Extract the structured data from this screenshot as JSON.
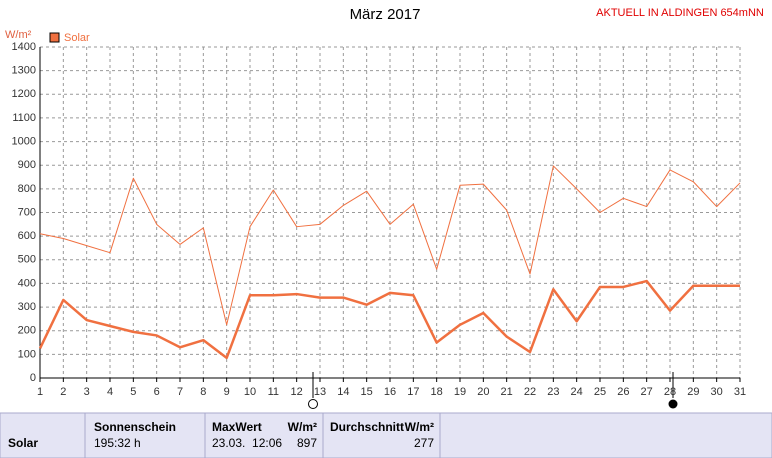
{
  "chart_data": {
    "type": "line",
    "title": "März 2017",
    "subtitle": "AKTUELL IN ALDINGEN 654mNN",
    "y_label": "W/m²",
    "x": [
      1,
      2,
      3,
      4,
      5,
      6,
      7,
      8,
      9,
      10,
      11,
      12,
      13,
      14,
      15,
      16,
      17,
      18,
      19,
      20,
      21,
      22,
      23,
      24,
      25,
      26,
      27,
      28,
      29,
      30,
      31
    ],
    "xlim": [
      1,
      31
    ],
    "ylim": [
      0,
      1400
    ],
    "yticks": [
      0,
      100,
      200,
      300,
      400,
      500,
      600,
      700,
      800,
      900,
      1000,
      1100,
      1200,
      1300,
      1400
    ],
    "grid": true,
    "series": [
      {
        "color": "#f07040",
        "width": 1,
        "values": [
          610,
          590,
          560,
          530,
          845,
          650,
          565,
          635,
          225,
          640,
          795,
          640,
          650,
          730,
          790,
          650,
          735,
          460,
          815,
          820,
          710,
          440,
          897,
          800,
          700,
          760,
          725,
          880,
          830,
          725,
          825
        ]
      },
      {
        "name": "Solar",
        "color": "#f07040",
        "width": 2.5,
        "values": [
          125,
          330,
          245,
          220,
          195,
          180,
          130,
          160,
          85,
          350,
          350,
          355,
          340,
          340,
          310,
          360,
          350,
          150,
          225,
          275,
          175,
          110,
          375,
          240,
          385,
          385,
          410,
          285,
          390,
          390,
          390
        ]
      }
    ]
  },
  "table": {
    "row_label": "Solar",
    "columns": [
      {
        "header": "Sonnenschein",
        "value": "195:32 h"
      },
      {
        "header": "MaxWert",
        "unit": "W/m²",
        "date": "23.03.  12:06",
        "value": "897"
      },
      {
        "header": "Durchschnitt",
        "unit": "W/m²",
        "value": "277"
      }
    ]
  }
}
